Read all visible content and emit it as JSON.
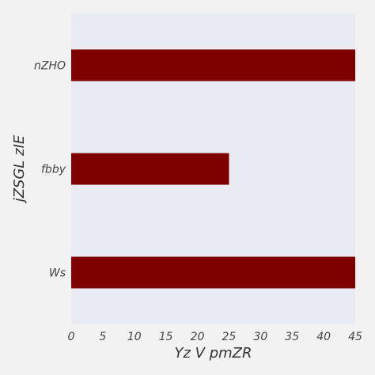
{
  "chart_data": {
    "type": "bar",
    "orientation": "horizontal",
    "categories": [
      "nZHO",
      "fbby",
      "Ws"
    ],
    "values": [
      45,
      25,
      45
    ],
    "xlabel": "Yz V pmZR",
    "ylabel": "jZSGL zIE",
    "xlim": [
      0,
      45
    ],
    "xticks": [
      0,
      5,
      10,
      15,
      20,
      25,
      30,
      35,
      40,
      45
    ],
    "grid": false,
    "colors": {
      "bar": "#800000",
      "plot_background": "#eaeaf2",
      "figure_background": "#f2f2f2"
    }
  }
}
